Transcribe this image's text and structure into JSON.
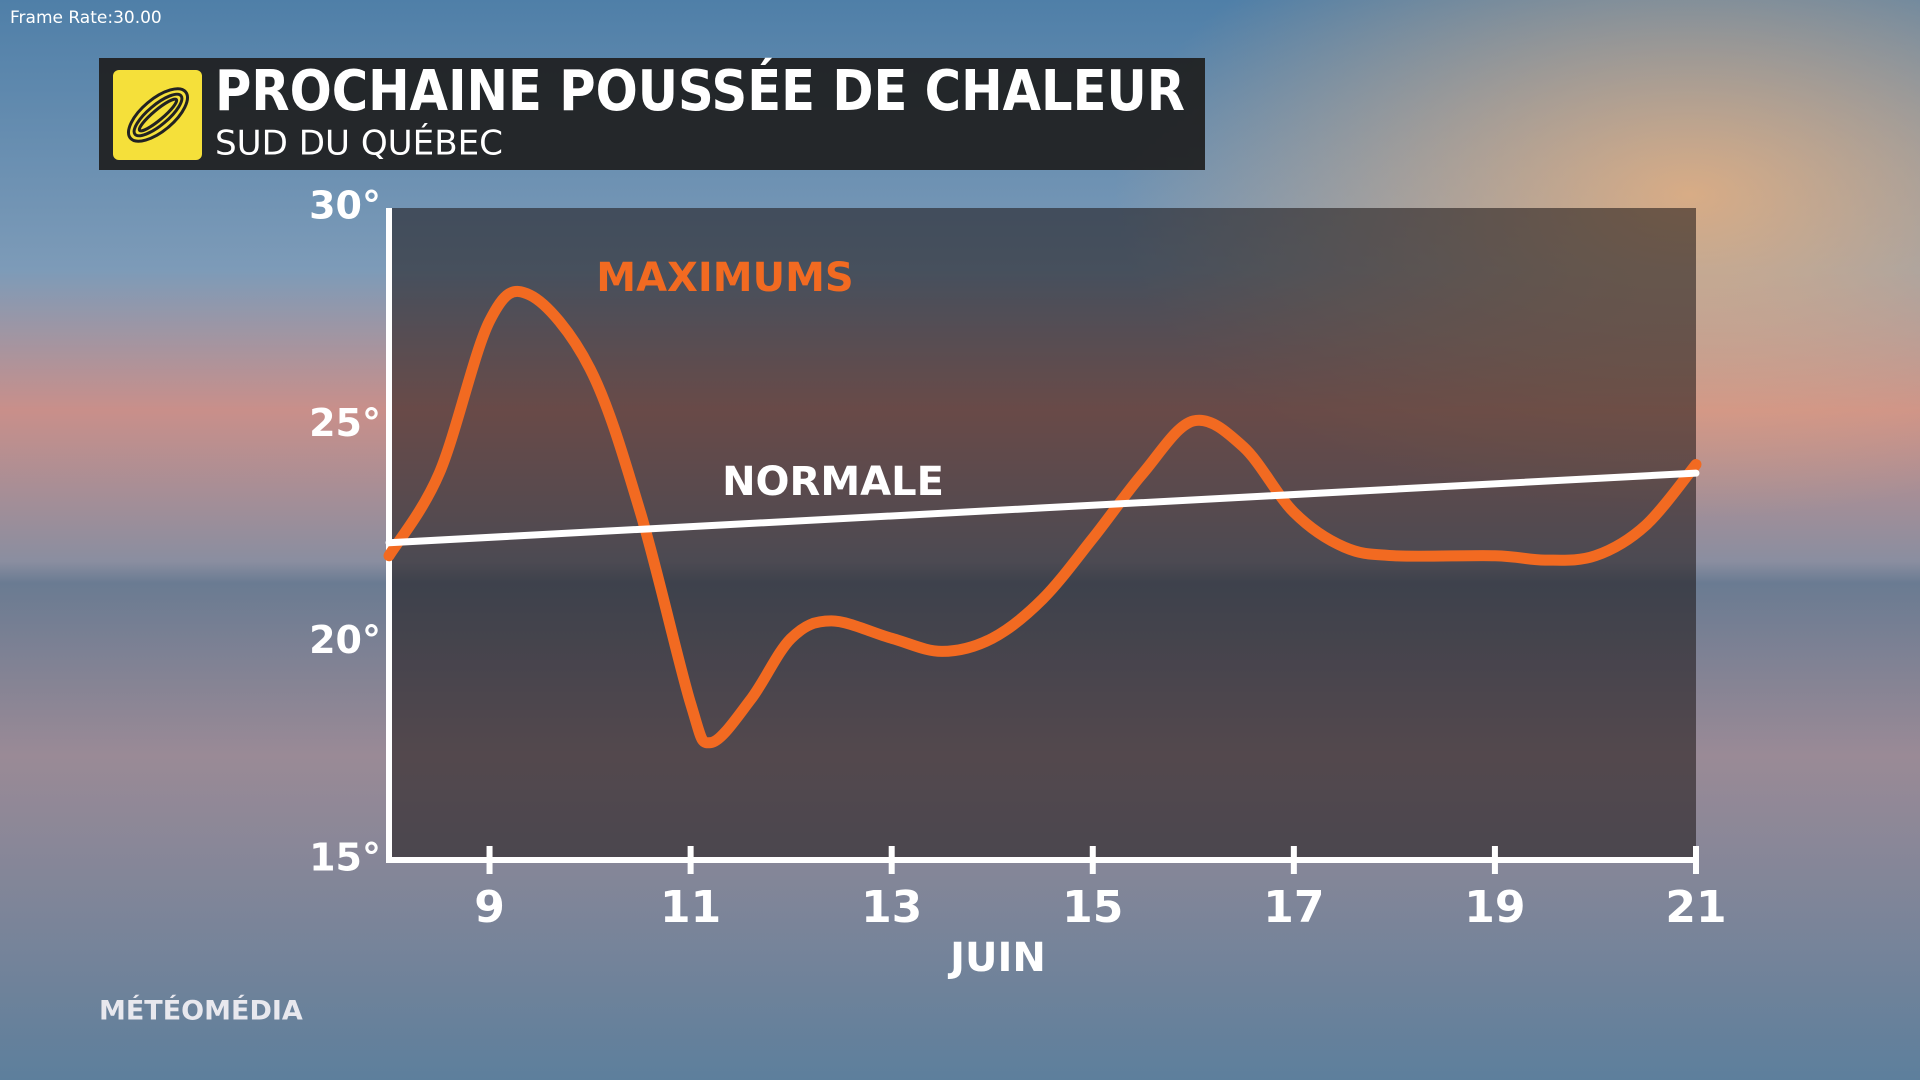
{
  "frame_rate": "Frame Rate:30.00",
  "brand": "MÉTÉOMÉDIA",
  "chart_data": {
    "type": "line",
    "title": "PROCHAINE POUSSÉE DE CHALEUR",
    "subtitle": "SUD DU QUÉBEC",
    "x_label": "JUIN",
    "xlim": [
      8,
      21
    ],
    "xticks": [
      9,
      11,
      13,
      15,
      17,
      19,
      21
    ],
    "ylim": [
      15,
      30
    ],
    "yticks": [
      {
        "value": 15,
        "label": "15°"
      },
      {
        "value": 20,
        "label": "20°"
      },
      {
        "value": 25,
        "label": "25°"
      },
      {
        "value": 30,
        "label": "30°"
      }
    ],
    "series": [
      {
        "name": "MAXIMUMS",
        "color": "#f26a21",
        "x": [
          8,
          8.5,
          9,
          9.4,
          10,
          10.5,
          11,
          11.2,
          11.6,
          12,
          12.4,
          13,
          13.5,
          14,
          14.5,
          15,
          15.5,
          16,
          16.5,
          17,
          17.5,
          18,
          19,
          19.5,
          20,
          20.5,
          21
        ],
        "values": [
          22.0,
          23.9,
          27.4,
          28.0,
          26.3,
          23.0,
          18.6,
          17.7,
          18.7,
          20.1,
          20.5,
          20.1,
          19.8,
          20.1,
          21.0,
          22.4,
          23.9,
          25.1,
          24.5,
          23.0,
          22.2,
          22.0,
          22.0,
          21.9,
          22.0,
          22.7,
          24.1
        ]
      },
      {
        "name": "NORMALE",
        "color": "#ffffff",
        "x": [
          8,
          21
        ],
        "values": [
          22.3,
          23.9
        ]
      }
    ]
  }
}
